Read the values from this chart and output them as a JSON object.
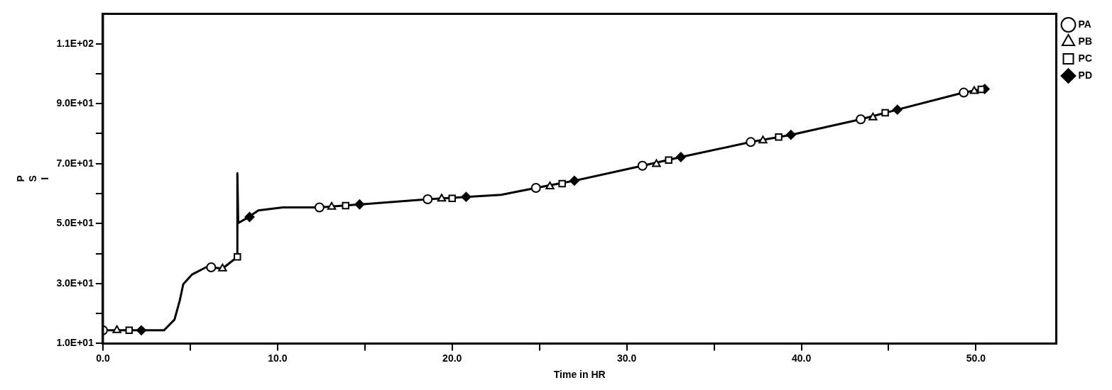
{
  "chart_data": {
    "type": "line",
    "xlabel": "Time in HR",
    "ylabel": "PSI",
    "xlim": [
      0,
      54.6
    ],
    "ylim": [
      10,
      120
    ],
    "xticks": [
      {
        "value": 0,
        "label": "0.0"
      },
      {
        "value": 5,
        "label": null
      },
      {
        "value": 10,
        "label": "10.0"
      },
      {
        "value": 15,
        "label": null
      },
      {
        "value": 20,
        "label": "20.0"
      },
      {
        "value": 25,
        "label": null
      },
      {
        "value": 30,
        "label": "30.0"
      },
      {
        "value": 35,
        "label": null
      },
      {
        "value": 40,
        "label": "40.0"
      },
      {
        "value": 45,
        "label": null
      },
      {
        "value": 50,
        "label": "50.0"
      }
    ],
    "yticks": [
      {
        "value": 10,
        "label": "1.0E+01"
      },
      {
        "value": 20,
        "label": null
      },
      {
        "value": 30,
        "label": "3.0E+01"
      },
      {
        "value": 40,
        "label": null
      },
      {
        "value": 50,
        "label": "5.0E+01"
      },
      {
        "value": 60,
        "label": null
      },
      {
        "value": 70,
        "label": "7.0E+01"
      },
      {
        "value": 80,
        "label": null
      },
      {
        "value": 90,
        "label": "9.0E+01"
      },
      {
        "value": 100,
        "label": null
      },
      {
        "value": 110,
        "label": "1.1E+02"
      }
    ],
    "grid": false,
    "legend": "top right",
    "line_style": "solid",
    "marker": "none",
    "series": [
      {
        "type": "line",
        "color": "#000000",
        "x": [
          0,
          2.2,
          3.5,
          4.1,
          4.4,
          4.6,
          5.1,
          5.9,
          6.2,
          6.85,
          7.7,
          7.7,
          7.75,
          8.3,
          8.9,
          10.3,
          12.4,
          14.7,
          18.6,
          20.8,
          22.8,
          24.8,
          27.0,
          30.9,
          33.1,
          37.1,
          39.4,
          43.4,
          45.5,
          49.3,
          50.4
        ],
        "values": [
          14.4,
          14.4,
          14.4,
          18,
          24.3,
          29.8,
          33,
          35.4,
          35.4,
          35,
          38.9,
          66.8,
          50.2,
          52,
          54.4,
          55.4,
          55.4,
          56.4,
          58.1,
          58.9,
          59.6,
          61.9,
          64.3,
          69.3,
          72.2,
          77.2,
          79.6,
          84.8,
          88,
          93.7,
          94.9
        ]
      },
      {
        "type": "scatter",
        "name": "PA",
        "marker": "circle",
        "color": "#000000",
        "x": [
          0,
          6.2,
          12.4,
          18.6,
          24.8,
          30.9,
          37.1,
          43.4,
          49.3
        ],
        "values": [
          14.4,
          35.4,
          55.4,
          58.1,
          61.9,
          69.3,
          77.2,
          84.8,
          93.7
        ]
      },
      {
        "type": "scatter",
        "name": "PB",
        "marker": "triangle",
        "color": "#000000",
        "x": [
          0.8,
          6.85,
          13.1,
          19.4,
          25.6,
          31.7,
          37.8,
          44.1,
          49.9
        ],
        "values": [
          14.4,
          35,
          55.6,
          58.3,
          62.4,
          69.8,
          77.7,
          85.4,
          94.2
        ]
      },
      {
        "type": "scatter",
        "name": "PC",
        "marker": "square",
        "color": "#000000",
        "x": [
          1.5,
          7.7,
          13.9,
          20.0,
          26.3,
          32.4,
          38.7,
          44.8,
          50.3
        ],
        "values": [
          14.4,
          38.9,
          56,
          58.4,
          63.3,
          71.2,
          78.9,
          87,
          94.8
        ]
      },
      {
        "type": "scatter",
        "name": "PD",
        "marker": "diamond",
        "color": "#000000",
        "x": [
          2.2,
          8.4,
          14.7,
          20.8,
          27.0,
          33.1,
          39.4,
          45.5,
          50.5
        ],
        "values": [
          14.4,
          52.2,
          56.4,
          58.9,
          64.3,
          72.2,
          79.6,
          88,
          94.9
        ]
      }
    ]
  }
}
